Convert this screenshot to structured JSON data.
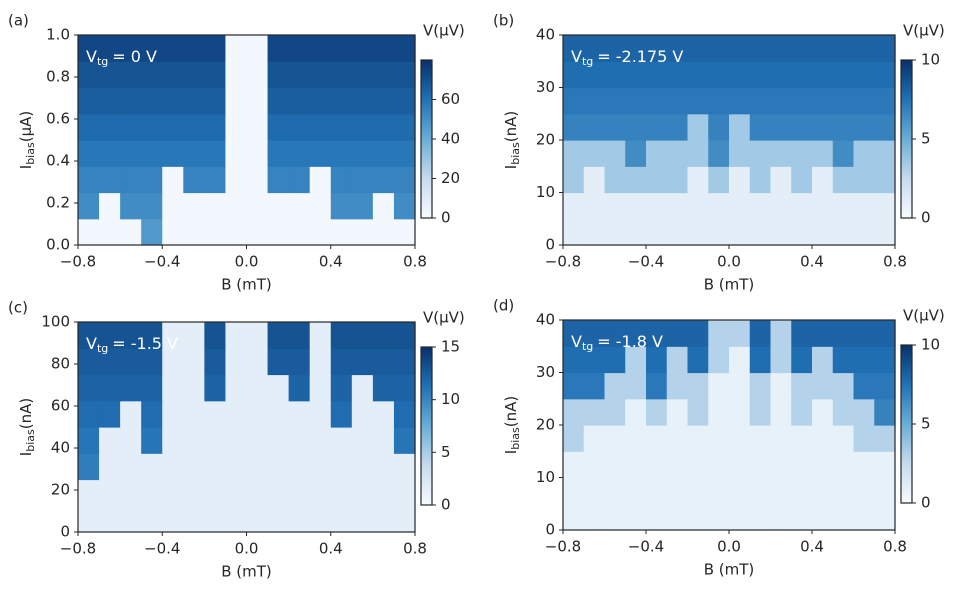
{
  "chart_data": [
    {
      "type": "heatmap",
      "panel_label": "(a)",
      "annotation": {
        "main": "V",
        "sub": "tg",
        "rest": "= 0 V"
      },
      "xlabel": "B (mT)",
      "ylabel": {
        "main": "I",
        "sub": "bias",
        "unit": "(μA)"
      },
      "colorbar_label": "V(μV)",
      "colormap": [
        "#f7fbff",
        "#c6dbef",
        "#6baed6",
        "#2171b5",
        "#08306b"
      ],
      "xlim": [
        -0.8,
        0.8
      ],
      "xticks": [
        {
          "value": -0.8,
          "label": "−0.8"
        },
        {
          "value": -0.4,
          "label": "−0.4"
        },
        {
          "value": 0,
          "label": "0.0"
        },
        0.4,
        0.8
      ],
      "ylim": [
        0,
        1
      ],
      "yticks": [
        {
          "value": 0,
          "label": "0.0"
        },
        0.2,
        0.4,
        0.6,
        0.8,
        {
          "value": 1,
          "label": "1.0"
        }
      ],
      "clim": [
        0,
        80
      ],
      "cticks": [
        0,
        20,
        40,
        60
      ],
      "x": [
        -0.75,
        -0.65,
        -0.55,
        -0.45,
        -0.35,
        -0.25,
        -0.15,
        -0.05,
        0.05,
        0.15,
        0.25,
        0.35,
        0.45,
        0.55,
        0.65,
        0.75
      ],
      "y": [
        0.0625,
        0.1875,
        0.3125,
        0.4375,
        0.5625,
        0.6875,
        0.8125,
        0.9375
      ],
      "z": [
        [
          2,
          2,
          2,
          47,
          2,
          2,
          2,
          2,
          2,
          2,
          2,
          2,
          2,
          2,
          2,
          2
        ],
        [
          51,
          2,
          51,
          51,
          2,
          2,
          2,
          2,
          2,
          2,
          2,
          2,
          51,
          51,
          2,
          51
        ],
        [
          54,
          54,
          54,
          54,
          2,
          54,
          54,
          2,
          2,
          54,
          54,
          2,
          54,
          54,
          54,
          54
        ],
        [
          58,
          58,
          58,
          58,
          58,
          58,
          58,
          2,
          2,
          58,
          58,
          58,
          58,
          58,
          58,
          58
        ],
        [
          62,
          62,
          62,
          62,
          62,
          62,
          62,
          2,
          2,
          62,
          62,
          62,
          62,
          62,
          62,
          62
        ],
        [
          66,
          66,
          66,
          66,
          66,
          66,
          66,
          2,
          2,
          66,
          66,
          66,
          66,
          66,
          66,
          66
        ],
        [
          69,
          69,
          69,
          69,
          69,
          69,
          69,
          2,
          2,
          69,
          69,
          69,
          69,
          69,
          69,
          69
        ],
        [
          73,
          73,
          73,
          73,
          73,
          73,
          73,
          2,
          2,
          73,
          73,
          73,
          73,
          73,
          73,
          73
        ]
      ]
    },
    {
      "type": "heatmap",
      "panel_label": "(b)",
      "annotation": {
        "main": "V",
        "sub": "tg",
        "rest": "= -2.175 V"
      },
      "xlabel": "B (mT)",
      "ylabel": {
        "main": "I",
        "sub": "bias",
        "unit": "(nA)"
      },
      "colorbar_label": "V(μV)",
      "colormap": [
        "#f7fbff",
        "#c6dbef",
        "#6baed6",
        "#2171b5",
        "#08306b"
      ],
      "xlim": [
        -0.8,
        0.8
      ],
      "xticks": [
        {
          "value": -0.8,
          "label": "−0.8"
        },
        {
          "value": -0.4,
          "label": "−0.4"
        },
        {
          "value": 0,
          "label": "0.0"
        },
        0.4,
        0.8
      ],
      "ylim": [
        0,
        40
      ],
      "yticks": [
        0,
        10,
        20,
        30,
        40
      ],
      "clim": [
        0,
        10
      ],
      "cticks": [
        0,
        5,
        10
      ],
      "x": [
        -0.75,
        -0.65,
        -0.55,
        -0.45,
        -0.35,
        -0.25,
        -0.15,
        -0.05,
        0.05,
        0.15,
        0.25,
        0.35,
        0.45,
        0.55,
        0.65,
        0.75
      ],
      "y": [
        2.5,
        7.5,
        12.5,
        17.5,
        22.5,
        27.5,
        32.5,
        37.5
      ],
      "z": [
        [
          1,
          1,
          1,
          1,
          1,
          1,
          1,
          1,
          1,
          1,
          1,
          1,
          1,
          1,
          1,
          1
        ],
        [
          1,
          1,
          1,
          1,
          1,
          1,
          1,
          1,
          1,
          1,
          1,
          1,
          1,
          1,
          1,
          1
        ],
        [
          3.5,
          1,
          3.5,
          3.5,
          3.5,
          3.5,
          1,
          3.5,
          1,
          3.5,
          1,
          3.5,
          1,
          3.5,
          3.5,
          3.5
        ],
        [
          3.5,
          3.5,
          3.5,
          6.4,
          3.5,
          3.5,
          3.5,
          6.4,
          3.5,
          3.5,
          3.5,
          3.5,
          3.5,
          6.4,
          3.5,
          3.5
        ],
        [
          6.8,
          6.8,
          6.8,
          6.8,
          6.8,
          6.8,
          3.5,
          6.8,
          3.5,
          6.8,
          6.8,
          6.8,
          6.8,
          6.8,
          6.8,
          6.8
        ],
        [
          7.2,
          7.2,
          7.2,
          7.2,
          7.2,
          7.2,
          7.2,
          7.2,
          7.2,
          7.2,
          7.2,
          7.2,
          7.2,
          7.2,
          7.2,
          7.2
        ],
        [
          7.6,
          7.6,
          7.6,
          7.6,
          7.6,
          7.6,
          7.6,
          7.6,
          7.6,
          7.6,
          7.6,
          7.6,
          7.6,
          7.6,
          7.6,
          7.6
        ],
        [
          8,
          8,
          8,
          8,
          8,
          8,
          8,
          8,
          8,
          8,
          8,
          8,
          8,
          8,
          8,
          8
        ]
      ]
    },
    {
      "type": "heatmap",
      "panel_label": "(c)",
      "annotation": {
        "main": "V",
        "sub": "tg",
        "rest": "= -1.5 V"
      },
      "xlabel": "B (mT)",
      "ylabel": {
        "main": "I",
        "sub": "bias",
        "unit": "(nA)"
      },
      "colorbar_label": "V(μV)",
      "colormap": [
        "#f7fbff",
        "#c6dbef",
        "#6baed6",
        "#2171b5",
        "#08306b"
      ],
      "xlim": [
        -0.8,
        0.8
      ],
      "xticks": [
        {
          "value": -0.8,
          "label": "−0.8"
        },
        {
          "value": -0.4,
          "label": "−0.4"
        },
        {
          "value": 0,
          "label": "0.0"
        },
        0.4,
        0.8
      ],
      "ylim": [
        0,
        100
      ],
      "yticks": [
        0,
        20,
        40,
        60,
        80,
        100
      ],
      "clim": [
        0,
        15
      ],
      "cticks": [
        0,
        5,
        10,
        15
      ],
      "x": [
        -0.75,
        -0.65,
        -0.55,
        -0.45,
        -0.35,
        -0.25,
        -0.15,
        -0.05,
        0.05,
        0.15,
        0.25,
        0.35,
        0.45,
        0.55,
        0.65,
        0.75
      ],
      "y": [
        6.25,
        18.75,
        31.25,
        43.75,
        56.25,
        68.75,
        81.25,
        93.75
      ],
      "z": [
        [
          1.5,
          1.5,
          1.5,
          1.5,
          1.5,
          1.5,
          1.5,
          1.5,
          1.5,
          1.5,
          1.5,
          1.5,
          1.5,
          1.5,
          1.5,
          1.5
        ],
        [
          1.5,
          1.5,
          1.5,
          1.5,
          1.5,
          1.5,
          1.5,
          1.5,
          1.5,
          1.5,
          1.5,
          1.5,
          1.5,
          1.5,
          1.5,
          1.5
        ],
        [
          10.5,
          1.5,
          1.5,
          1.5,
          1.5,
          1.5,
          1.5,
          1.5,
          1.5,
          1.5,
          1.5,
          1.5,
          1.5,
          1.5,
          1.5,
          1.5
        ],
        [
          11,
          1.5,
          1.5,
          11,
          1.5,
          1.5,
          1.5,
          1.5,
          1.5,
          1.5,
          1.5,
          1.5,
          1.5,
          1.5,
          1.5,
          11
        ],
        [
          11.5,
          11.5,
          1.5,
          11.5,
          1.5,
          1.5,
          1.5,
          1.5,
          1.5,
          1.5,
          1.5,
          1.5,
          11.5,
          1.5,
          1.5,
          11.5
        ],
        [
          12,
          12,
          12,
          12,
          1.5,
          1.5,
          12,
          1.5,
          1.5,
          1.5,
          12,
          1.5,
          12,
          1.5,
          12,
          12
        ],
        [
          12.5,
          12.5,
          12.5,
          12.5,
          1.5,
          1.5,
          12.5,
          1.5,
          1.5,
          12.5,
          12.5,
          1.5,
          12.5,
          12.5,
          12.5,
          12.5
        ],
        [
          13,
          13,
          13,
          13,
          1.5,
          1.5,
          13,
          1.5,
          1.5,
          13,
          13,
          1.5,
          13,
          13,
          13,
          13
        ]
      ]
    },
    {
      "type": "heatmap",
      "panel_label": "(d)",
      "annotation": {
        "main": "V",
        "sub": "tg",
        "rest": "= -1.8 V"
      },
      "xlabel": "B (mT)",
      "ylabel": {
        "main": "I",
        "sub": "bias",
        "unit": "(nA)"
      },
      "colorbar_label": "V(μV)",
      "colormap": [
        "#f7fbff",
        "#c6dbef",
        "#6baed6",
        "#2171b5",
        "#08306b"
      ],
      "xlim": [
        -0.8,
        0.8
      ],
      "xticks": [
        {
          "value": -0.8,
          "label": "−0.8"
        },
        {
          "value": -0.4,
          "label": "−0.4"
        },
        {
          "value": 0,
          "label": "0.0"
        },
        0.4,
        0.8
      ],
      "ylim": [
        0,
        40
      ],
      "yticks": [
        0,
        10,
        20,
        30,
        40
      ],
      "clim": [
        0,
        10
      ],
      "cticks": [
        0,
        5,
        10
      ],
      "x": [
        -0.75,
        -0.65,
        -0.55,
        -0.45,
        -0.35,
        -0.25,
        -0.15,
        -0.05,
        0.05,
        0.15,
        0.25,
        0.35,
        0.45,
        0.55,
        0.65,
        0.75
      ],
      "y": [
        2.5,
        7.5,
        12.5,
        17.5,
        22.5,
        27.5,
        32.5,
        37.5
      ],
      "z": [
        [
          0.8,
          0.8,
          0.8,
          0.8,
          0.8,
          0.8,
          0.8,
          0.8,
          0.8,
          0.8,
          0.8,
          0.8,
          0.8,
          0.8,
          0.8,
          0.8
        ],
        [
          0.8,
          0.8,
          0.8,
          0.8,
          0.8,
          0.8,
          0.8,
          0.8,
          0.8,
          0.8,
          0.8,
          0.8,
          0.8,
          0.8,
          0.8,
          0.8
        ],
        [
          0.8,
          0.8,
          0.8,
          0.8,
          0.8,
          0.8,
          0.8,
          0.8,
          0.8,
          0.8,
          0.8,
          0.8,
          0.8,
          0.8,
          0.8,
          0.8
        ],
        [
          3,
          0.8,
          0.8,
          0.8,
          0.8,
          0.8,
          0.8,
          0.8,
          0.8,
          0.8,
          0.8,
          0.8,
          0.8,
          0.8,
          3,
          3
        ],
        [
          3,
          3,
          3,
          0.8,
          3,
          0.8,
          3,
          0.8,
          0.8,
          3,
          0.8,
          3,
          0.8,
          3,
          3,
          6.8
        ],
        [
          7.2,
          7.2,
          3,
          3,
          7.2,
          3,
          3,
          0.8,
          0.8,
          3,
          0.8,
          3,
          3,
          3,
          7.2,
          7.2
        ],
        [
          7.6,
          7.6,
          7.6,
          3,
          7.6,
          3,
          7.6,
          3,
          0.8,
          7.6,
          3,
          7.6,
          3,
          7.6,
          7.6,
          7.6
        ],
        [
          8,
          8,
          8,
          8,
          8,
          8,
          8,
          3,
          3,
          8,
          3,
          8,
          8,
          8,
          8,
          8
        ]
      ]
    }
  ]
}
